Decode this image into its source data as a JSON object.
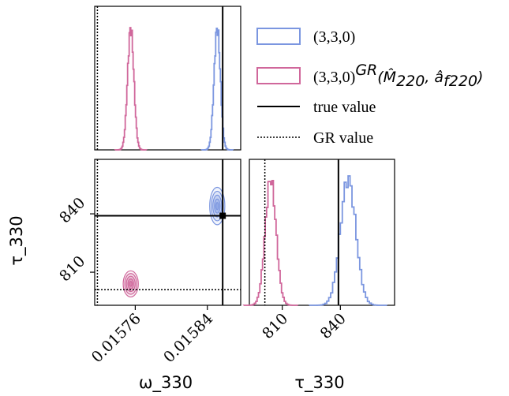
{
  "chart_data": {
    "type": "corner",
    "colors": {
      "series_330": "#7b96e0",
      "series_gr": "#d0679b",
      "truth": "#000000",
      "gr": "#000000"
    },
    "legend": {
      "placement": "top-right",
      "entries": [
        {
          "label": "(3,3,0)"
        },
        {
          "label": "(3,3,0)",
          "sup": "GR",
          "math": "(M̂",
          "sub1": "220",
          "mid": ", â",
          "sub2": "f220",
          "close": ")"
        },
        {
          "label": "true value"
        },
        {
          "label": "GR value"
        }
      ]
    },
    "axes": {
      "omega": {
        "label": "ω_330",
        "range": [
          0.015715,
          0.015877
        ],
        "ticks": [
          0.01576,
          0.01584
        ],
        "tick_labels": [
          "0.01576",
          "0.01584"
        ]
      },
      "tau": {
        "label": "τ_330",
        "range": [
          793,
          868
        ],
        "ticks": [
          810,
          840
        ],
        "tick_labels": [
          "810",
          "840"
        ]
      }
    },
    "truth": {
      "omega": 0.015857,
      "tau": 839
    },
    "gr": {
      "omega": 0.015718,
      "tau": 801
    },
    "series": [
      {
        "key": "series_330",
        "omega_mean": 0.015851,
        "omega_sd": 3.5e-06,
        "tau_mean": 844,
        "tau_sd": 4.0
      },
      {
        "key": "series_gr",
        "omega_mean": 0.015755,
        "omega_sd": 3.5e-06,
        "tau_mean": 804,
        "tau_sd": 2.8
      }
    ]
  }
}
